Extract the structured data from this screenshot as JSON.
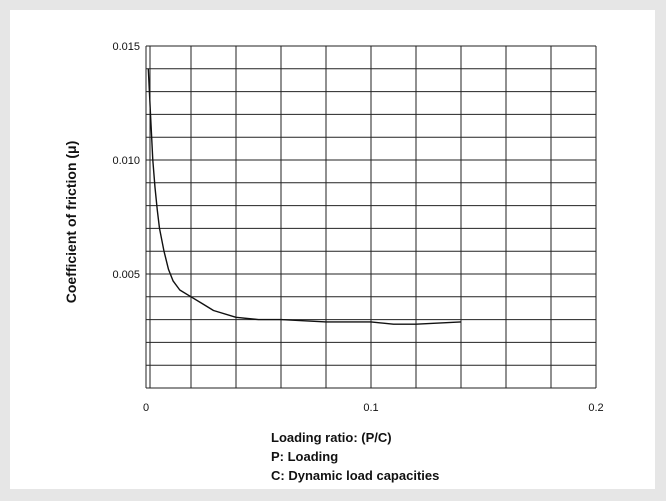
{
  "chart_data": {
    "type": "line",
    "title": "",
    "xlabel": "Loading ratio: (P/C)",
    "ylabel": "Coefficient of friction (μ)",
    "xlim": [
      0,
      0.2
    ],
    "ylim": [
      0,
      0.015
    ],
    "x_ticks": [
      "0",
      "0.1",
      "0.2"
    ],
    "y_ticks": [
      "0.005",
      "0.010",
      "0.015"
    ],
    "grid": true,
    "series": [
      {
        "x": [
          0.001,
          0.002,
          0.003,
          0.004,
          0.005,
          0.006,
          0.008,
          0.01,
          0.012,
          0.015,
          0.02,
          0.025,
          0.03,
          0.04,
          0.05,
          0.06,
          0.08,
          0.1,
          0.11,
          0.12,
          0.14
        ],
        "y": [
          0.014,
          0.012,
          0.01,
          0.0088,
          0.0078,
          0.007,
          0.006,
          0.0052,
          0.0047,
          0.0043,
          0.004,
          0.0037,
          0.0034,
          0.0031,
          0.003,
          0.003,
          0.0029,
          0.0029,
          0.0028,
          0.0028,
          0.0029
        ]
      }
    ],
    "notes": [
      "Loading ratio: (P/C)",
      "P: Loading",
      "C: Dynamic load capacities"
    ]
  },
  "colors": {
    "background": "#e6e6e6",
    "panel": "#ffffff",
    "grid": "#222222",
    "line": "#111111"
  }
}
